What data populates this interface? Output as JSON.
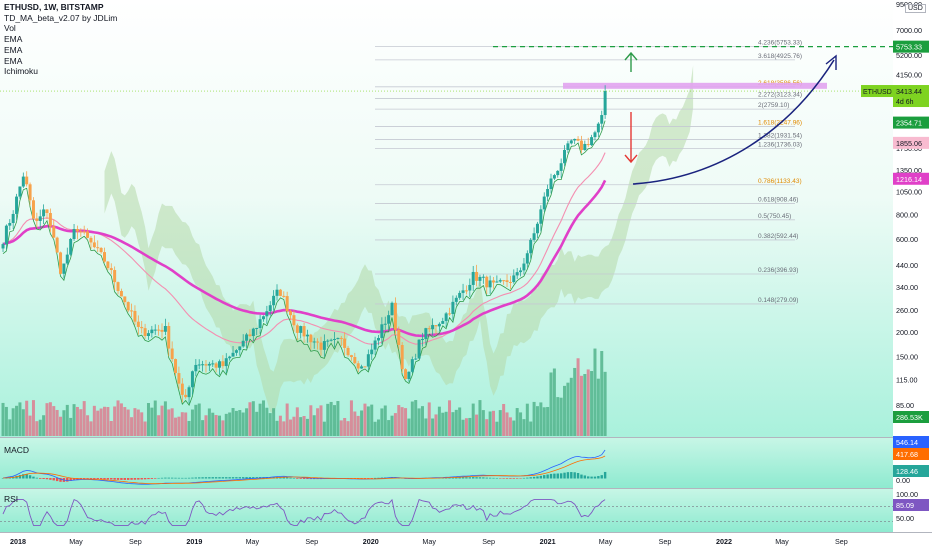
{
  "legend": {
    "symbol": "ETHUSD, 1W, BITSTAMP",
    "indicator": "TD_MA_beta_v2.07 by JDLim",
    "lines": [
      "Vol",
      "EMA",
      "EMA",
      "EMA",
      "Ichimoku"
    ]
  },
  "currency": "USD",
  "macd_label": "MACD",
  "rsi_label": "RSI",
  "colors": {
    "candle_up": "#26a69a",
    "candle_down": "#f7a24b",
    "ema_slow": "#e040c8",
    "ema_fast": "#f48fb1",
    "td_line": "#2e9b4a",
    "cloud": "#b5d9a8",
    "fib_line": "#c5c9d2",
    "target_green": "#1b9e3e",
    "resistance_band": "#e1a3f0",
    "arrow_up": "#2e9b4a",
    "arrow_down": "#e53935",
    "curve": "#1a237e"
  },
  "chart_data": [
    {
      "type": "candlestick",
      "title": "ETHUSD, 1W, BITSTAMP",
      "y_scale": "log",
      "y_ticks": [
        "9500.00",
        "7000.00",
        "5200.00",
        "4150.00",
        "3200.00",
        "2400.00",
        "1750.00",
        "1350.00",
        "1050.00",
        "800.00",
        "600.00",
        "440.00",
        "340.00",
        "260.00",
        "200.00",
        "150.00",
        "115.00",
        "85.00"
      ],
      "x_ticks": [
        "2018",
        "May",
        "Sep",
        "2019",
        "May",
        "Sep",
        "2020",
        "May",
        "Sep",
        "2021",
        "May",
        "Sep",
        "2022",
        "May",
        "Sep"
      ],
      "price_path": [
        [
          "2017-12-01",
          600
        ],
        [
          "2017-12-20",
          800
        ],
        [
          "2018-01-13",
          1300
        ],
        [
          "2018-02-05",
          700
        ],
        [
          "2018-03-01",
          860
        ],
        [
          "2018-04-01",
          400
        ],
        [
          "2018-05-01",
          700
        ],
        [
          "2018-07-01",
          460
        ],
        [
          "2018-09-10",
          200
        ],
        [
          "2018-11-01",
          210
        ],
        [
          "2018-12-10",
          85
        ],
        [
          "2019-01-01",
          140
        ],
        [
          "2019-03-01",
          135
        ],
        [
          "2019-05-01",
          200
        ],
        [
          "2019-06-26",
          330
        ],
        [
          "2019-08-01",
          210
        ],
        [
          "2019-09-20",
          170
        ],
        [
          "2019-11-01",
          180
        ],
        [
          "2019-12-15",
          130
        ],
        [
          "2020-02-14",
          270
        ],
        [
          "2020-03-13",
          110
        ],
        [
          "2020-04-15",
          190
        ],
        [
          "2020-06-01",
          240
        ],
        [
          "2020-08-01",
          390
        ],
        [
          "2020-09-15",
          340
        ],
        [
          "2020-11-01",
          390
        ],
        [
          "2020-12-01",
          600
        ],
        [
          "2021-01-01",
          1100
        ],
        [
          "2021-02-20",
          1900
        ],
        [
          "2021-03-15",
          1750
        ],
        [
          "2021-04-10",
          2100
        ],
        [
          "2021-04-25",
          2500
        ],
        [
          "2021-05-03",
          3413
        ]
      ],
      "current_price": "3413.44",
      "current_label": "ETHUSD",
      "countdown": "4d 6h",
      "price_tags": [
        "5753.33",
        "2354.71",
        "1855.06",
        "1216.14"
      ],
      "fib_levels": [
        {
          "ratio": "4.236",
          "price": 5753.33,
          "label": "4.236(5753.33)"
        },
        {
          "ratio": "3.618",
          "price": 4925.76,
          "label": "3.618(4925.76)"
        },
        {
          "ratio": "2.618",
          "price": 3586.56,
          "label": "2.618(3586.56)"
        },
        {
          "ratio": "2.272",
          "price": 3123.34,
          "label": "2.272(3123.34)"
        },
        {
          "ratio": "2",
          "price": 2759.1,
          "label": "2(2759.10)"
        },
        {
          "ratio": "1.618",
          "price": 2247.96,
          "label": "1.618(2247.96)"
        },
        {
          "ratio": "1.382",
          "price": 1931.54,
          "label": "1.382(1931.54)"
        },
        {
          "ratio": "1.236",
          "price": 1736.03,
          "label": "1.236(1736.03)"
        },
        {
          "ratio": "0.786",
          "price": 1133.43,
          "label": "0.786(1133.43)"
        },
        {
          "ratio": "0.618",
          "price": 908.46,
          "label": "0.618(908.46)"
        },
        {
          "ratio": "0.5",
          "price": 750.45,
          "label": "0.5(750.45)"
        },
        {
          "ratio": "0.382",
          "price": 592.44,
          "label": "0.382(592.44)"
        },
        {
          "ratio": "0.236",
          "price": 396.93,
          "label": "0.236(396.93)"
        },
        {
          "ratio": "0.148",
          "price": 279.09,
          "label": "0.148(279.09)"
        }
      ],
      "target_price": 5753.33,
      "volume_tag": "286.53K"
    },
    {
      "type": "line",
      "title": "MACD",
      "y_ticks": [
        "0.00"
      ],
      "tags": [
        "546.14",
        "417.68",
        "128.46"
      ]
    },
    {
      "type": "line",
      "title": "RSI",
      "y_ticks": [
        "100.00",
        "50.00"
      ],
      "tags": [
        "85.09"
      ]
    }
  ]
}
